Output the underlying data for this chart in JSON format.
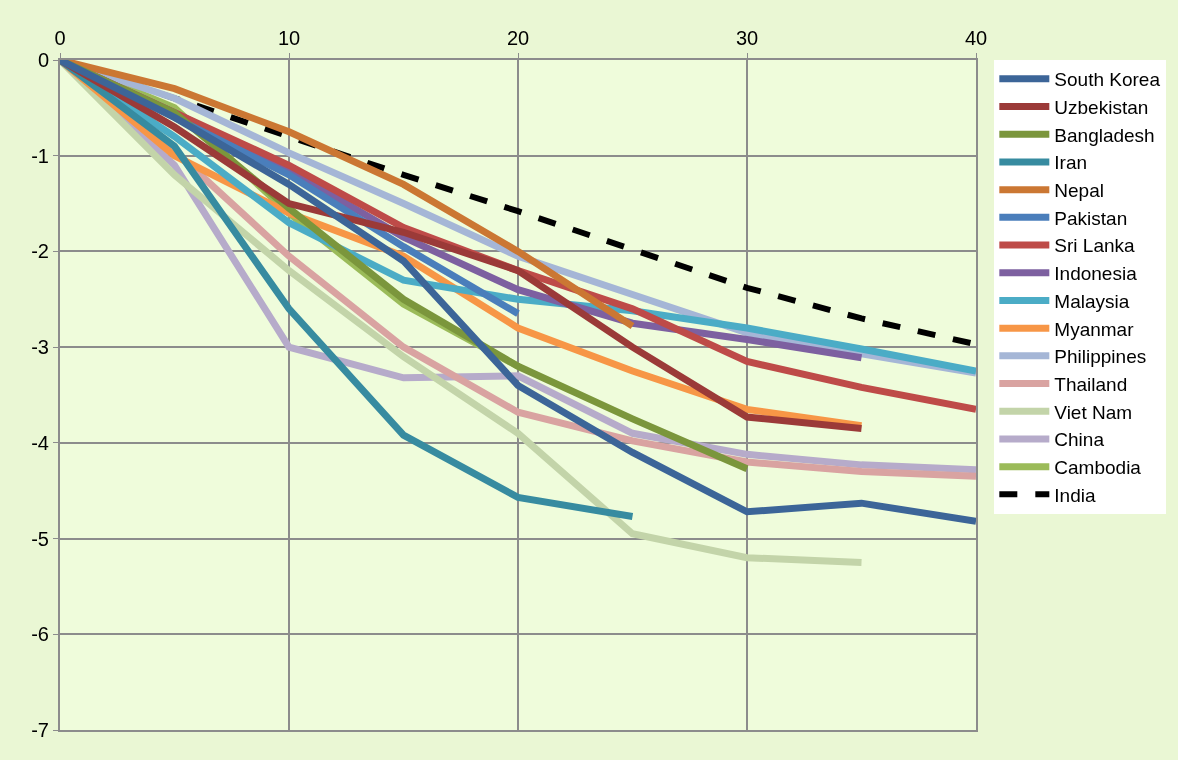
{
  "chart_data": {
    "type": "line",
    "xlim": [
      0,
      40
    ],
    "xticks": [
      0,
      10,
      20,
      30,
      40
    ],
    "ylim": [
      -7,
      0
    ],
    "yticks": [
      -7,
      -6,
      -5,
      -4,
      -3,
      -2,
      -1,
      0
    ],
    "grid": true,
    "legend": "right",
    "marker": "none",
    "series": [
      {
        "name": "South Korea",
        "color": "#3c6598",
        "x": [
          0,
          5,
          10,
          15,
          20,
          25,
          30,
          35,
          40
        ],
        "values": [
          0,
          -0.6,
          -1.3,
          -2.1,
          -3.4,
          -4.1,
          -4.72,
          -4.63,
          -4.82
        ]
      },
      {
        "name": "Uzbekistan",
        "color": "#9b3a38",
        "x": [
          0,
          5,
          10,
          15,
          20,
          25,
          30,
          35
        ],
        "values": [
          0,
          -0.7,
          -1.5,
          -1.8,
          -2.2,
          -3.0,
          -3.73,
          -3.85
        ]
      },
      {
        "name": "Bangladesh",
        "color": "#7b963c",
        "x": [
          0,
          5,
          10,
          15,
          20,
          25,
          30
        ],
        "values": [
          0,
          -0.55,
          -1.55,
          -2.5,
          -3.2,
          -3.75,
          -4.27
        ]
      },
      {
        "name": "Iran",
        "color": "#378ba0",
        "x": [
          0,
          5,
          10,
          15,
          20,
          25
        ],
        "values": [
          0,
          -0.9,
          -2.6,
          -3.92,
          -4.57,
          -4.77
        ]
      },
      {
        "name": "Nepal",
        "color": "#cb7733",
        "x": [
          0,
          5,
          10,
          15,
          20,
          25
        ],
        "values": [
          0,
          -0.3,
          -0.75,
          -1.3,
          -2.0,
          -2.78
        ]
      },
      {
        "name": "Pakistan",
        "color": "#4a7ebb",
        "x": [
          0,
          5,
          10,
          15,
          20
        ],
        "values": [
          0,
          -0.6,
          -1.2,
          -1.95,
          -2.65
        ]
      },
      {
        "name": "Sri Lanka",
        "color": "#be4b48",
        "x": [
          0,
          5,
          10,
          15,
          20,
          25,
          30,
          35,
          40
        ],
        "values": [
          0,
          -0.55,
          -1.1,
          -1.75,
          -2.2,
          -2.6,
          -3.15,
          -3.42,
          -3.65
        ]
      },
      {
        "name": "Indonesia",
        "color": "#7d60a0",
        "x": [
          0,
          5,
          10,
          15,
          20,
          25,
          30,
          35
        ],
        "values": [
          0,
          -0.55,
          -1.15,
          -1.85,
          -2.4,
          -2.75,
          -2.92,
          -3.11
        ]
      },
      {
        "name": "Malaysia",
        "color": "#4bacc6",
        "x": [
          0,
          5,
          10,
          15,
          20,
          25,
          30,
          35,
          40
        ],
        "values": [
          0,
          -0.8,
          -1.7,
          -2.3,
          -2.5,
          -2.62,
          -2.8,
          -3.02,
          -3.25
        ]
      },
      {
        "name": "Myanmar",
        "color": "#f79646",
        "x": [
          0,
          5,
          10,
          15,
          20,
          25,
          30,
          35
        ],
        "values": [
          0,
          -1.0,
          -1.6,
          -2.05,
          -2.8,
          -3.25,
          -3.65,
          -3.82
        ]
      },
      {
        "name": "Philippines",
        "color": "#a5b6d6",
        "x": [
          0,
          5,
          10,
          15,
          20,
          25,
          30,
          35,
          40
        ],
        "values": [
          0,
          -0.4,
          -0.97,
          -1.5,
          -2.05,
          -2.45,
          -2.85,
          -3.07,
          -3.27
        ]
      },
      {
        "name": "Thailand",
        "color": "#d9a3a1",
        "x": [
          0,
          5,
          10,
          15,
          20,
          25,
          30,
          35,
          40
        ],
        "values": [
          0,
          -0.95,
          -2.05,
          -3.0,
          -3.68,
          -3.98,
          -4.2,
          -4.3,
          -4.35
        ]
      },
      {
        "name": "Viet Nam",
        "color": "#c3d4a9",
        "x": [
          0,
          5,
          10,
          15,
          20,
          25,
          30,
          35
        ],
        "values": [
          0,
          -1.2,
          -2.2,
          -3.1,
          -3.9,
          -4.95,
          -5.2,
          -5.25
        ]
      },
      {
        "name": "China",
        "color": "#b6abca",
        "x": [
          0,
          5,
          10,
          15,
          20,
          25,
          30,
          35,
          40
        ],
        "values": [
          0,
          -1.1,
          -3.0,
          -3.32,
          -3.3,
          -3.9,
          -4.12,
          -4.23,
          -4.28
        ]
      },
      {
        "name": "Cambodia",
        "color": "#9bbb59",
        "x": [
          0,
          5,
          10,
          15,
          20
        ],
        "values": [
          0,
          -0.5,
          -1.6,
          -2.55,
          -3.2
        ]
      },
      {
        "name": "India",
        "color": "#000000",
        "line_style": "dashed",
        "x": [
          0,
          5,
          10,
          15,
          20,
          25,
          30,
          35,
          40
        ],
        "values": [
          0,
          -0.4,
          -0.8,
          -1.2,
          -1.58,
          -1.98,
          -2.38,
          -2.7,
          -2.97
        ]
      }
    ]
  }
}
